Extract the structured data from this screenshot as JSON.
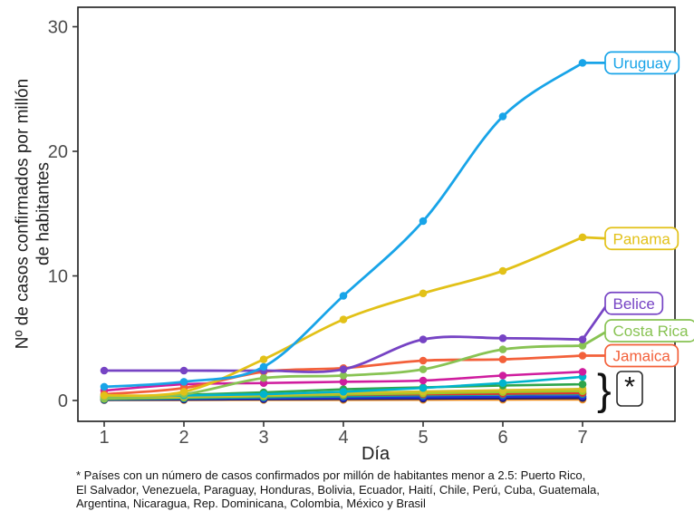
{
  "figure": {
    "background": "#ffffff",
    "footnote_lines": [
      "* Países con un número de casos confirmados por millón de habitantes menor a 2.5: Puerto Rico,",
      "El Salvador, Venezuela, Paraguay, Honduras, Bolivia, Ecuador, Haití, Chile, Perú, Cuba, Guatemala,",
      "Argentina, Nicaragua, Rep. Dominicana, Colombia, México y Brasil"
    ]
  },
  "chart_data": {
    "type": "line",
    "title": "",
    "xlabel": "Día",
    "ylabel": "Nº de casos confirmados por millón de habitantes",
    "ylabel_lines": [
      "Nº de casos confirmados por millón",
      "de habitantes"
    ],
    "x": [
      1,
      2,
      3,
      4,
      5,
      6,
      7
    ],
    "y_ticks": [
      0,
      10,
      20,
      30
    ],
    "xlim": [
      0.7,
      8.1
    ],
    "ylim": [
      -0.5,
      31.6
    ],
    "grid": false,
    "legend_position": "direct-labels-right",
    "axis_text_color": "#4d4d4d",
    "panel_border_color": "#1a1a1a",
    "series": [
      {
        "name": "unlabeled-1",
        "color": "#f29120",
        "values": [
          0.04,
          0.04,
          0.05,
          0.05,
          0.06,
          0.07,
          0.08
        ],
        "label": null
      },
      {
        "name": "unlabeled-2",
        "color": "#1c1a6e",
        "values": [
          0.05,
          0.08,
          0.1,
          0.13,
          0.15,
          0.18,
          0.2
        ],
        "label": null
      },
      {
        "name": "unlabeled-3",
        "color": "#2433d8",
        "values": [
          0.12,
          0.15,
          0.18,
          0.22,
          0.26,
          0.3,
          0.34
        ],
        "label": null
      },
      {
        "name": "unlabeled-4",
        "color": "#1aa392",
        "values": [
          0.1,
          0.18,
          0.26,
          0.34,
          0.42,
          0.48,
          0.52
        ],
        "label": null
      },
      {
        "name": "unlabeled-5",
        "color": "#dd3333",
        "values": [
          0.35,
          0.38,
          0.42,
          0.46,
          0.5,
          0.55,
          0.6
        ],
        "label": null
      },
      {
        "name": "unlabeled-6",
        "color": "#a0c828",
        "values": [
          0.15,
          0.25,
          0.35,
          0.48,
          0.58,
          0.68,
          0.75
        ],
        "label": null
      },
      {
        "name": "unlabeled-7",
        "color": "#d6bd25",
        "values": [
          0.2,
          0.3,
          0.45,
          0.6,
          0.72,
          0.82,
          0.92
        ],
        "label": null
      },
      {
        "name": "unlabeled-8",
        "color": "#2fa54b",
        "values": [
          0.25,
          0.45,
          0.65,
          0.9,
          1.05,
          1.2,
          1.3
        ],
        "label": null
      },
      {
        "name": "unlabeled-9",
        "color": "#00b4cd",
        "values": [
          0.3,
          0.4,
          0.5,
          0.7,
          1.0,
          1.4,
          1.9
        ],
        "label": null
      },
      {
        "name": "unlabeled-10",
        "color": "#cf1d9e",
        "values": [
          0.8,
          1.3,
          1.4,
          1.5,
          1.6,
          2.0,
          2.3
        ],
        "label": null
      },
      {
        "name": "Jamaica",
        "color": "#f3603a",
        "values": [
          0.5,
          1.0,
          2.3,
          2.6,
          3.2,
          3.3,
          3.6
        ],
        "label": {
          "text": "Jamaica",
          "at": 3.6
        }
      },
      {
        "name": "Costa Rica",
        "color": "#88c353",
        "values": [
          0.2,
          0.5,
          1.8,
          2.0,
          2.5,
          4.1,
          4.4
        ],
        "label": {
          "text": "Costa Rica",
          "at": 5.6
        }
      },
      {
        "name": "Belice",
        "color": "#7643c4",
        "values": [
          2.4,
          2.4,
          2.4,
          2.5,
          4.9,
          5.0,
          4.9
        ],
        "label": {
          "text": "Belice",
          "at": 7.8
        }
      },
      {
        "name": "Panama",
        "color": "#e2c118",
        "values": [
          0.4,
          0.7,
          3.3,
          6.5,
          8.6,
          10.4,
          13.1
        ],
        "label": {
          "text": "Panama",
          "at": 13.0
        }
      },
      {
        "name": "Uruguay",
        "color": "#18a4e8",
        "values": [
          1.1,
          1.5,
          2.7,
          8.4,
          14.4,
          22.8,
          27.1
        ],
        "label": {
          "text": "Uruguay",
          "at": 27.1
        }
      }
    ],
    "annotations": {
      "brace_symbol": "}",
      "asterisk_symbol": "*"
    },
    "footnote": "* Países con un número de casos confirmados por millón de habitantes menor a 2.5: Puerto Rico, El Salvador, Venezuela, Paraguay, Honduras, Bolivia, Ecuador, Haití, Chile, Perú, Cuba, Guatemala, Argentina, Nicaragua, Rep. Dominicana, Colombia, México y Brasil",
    "countries_below_2_5": [
      "Puerto Rico",
      "El Salvador",
      "Venezuela",
      "Paraguay",
      "Honduras",
      "Bolivia",
      "Ecuador",
      "Haití",
      "Chile",
      "Perú",
      "Cuba",
      "Guatemala",
      "Argentina",
      "Nicaragua",
      "Rep. Dominicana",
      "Colombia",
      "México",
      "Brasil"
    ]
  }
}
